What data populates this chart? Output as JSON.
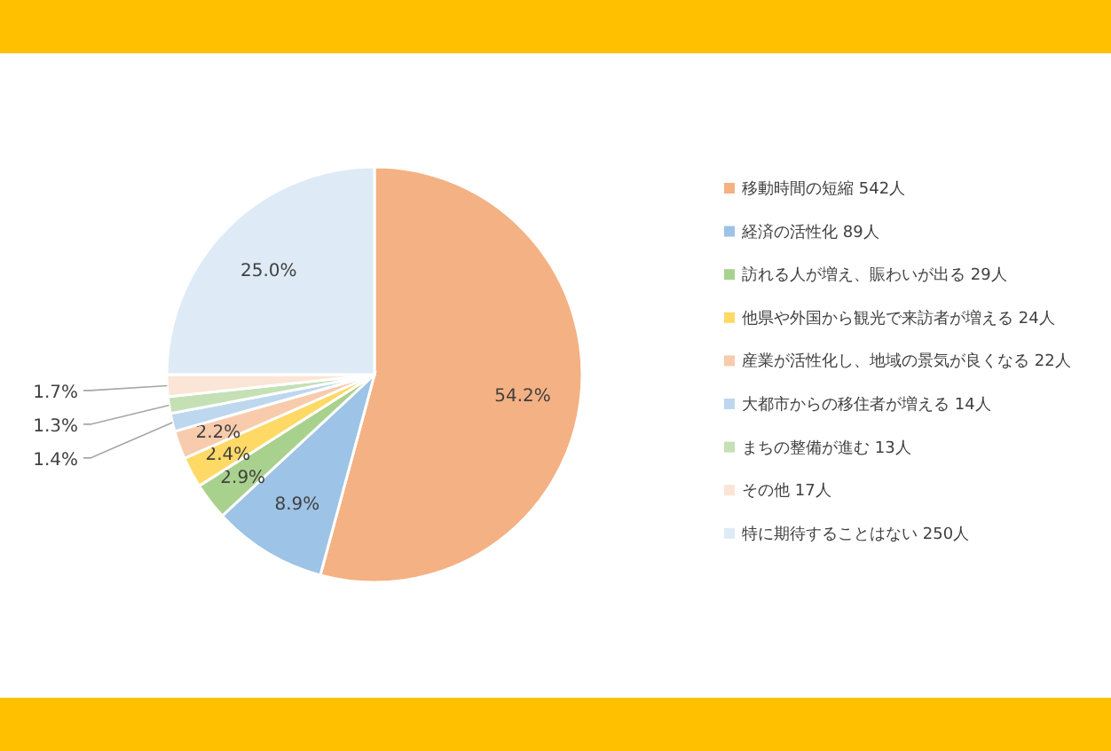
{
  "chart_data": {
    "type": "pie",
    "data_labels": true,
    "legend": "right",
    "categories": [
      "移動時間の短縮 542人",
      "経済の活性化 89人",
      "訪れる人が増え、賑わいが出る 29人",
      "他県や外国から観光で来訪者が増える 24人",
      "産業が活性化し、地域の景気が良くなる 22人",
      "大都市からの移住者が増える 14人",
      "まちの整備が進む 13人",
      "その他 17人",
      "特に期待することはない 250人"
    ],
    "values": [
      54.2,
      8.9,
      2.9,
      2.4,
      2.2,
      1.4,
      1.3,
      1.7,
      25.0
    ],
    "value_labels": [
      "54.2%",
      "8.9%",
      "2.9%",
      "2.4%",
      "2.2%",
      "1.4%",
      "1.3%",
      "1.7%",
      "25.0%"
    ],
    "colors": [
      "#f4b183",
      "#9dc3e6",
      "#a9d18e",
      "#ffd966",
      "#f8cbad",
      "#bdd7ee",
      "#c5e0b4",
      "#fbe5d6",
      "#deebf7"
    ]
  }
}
